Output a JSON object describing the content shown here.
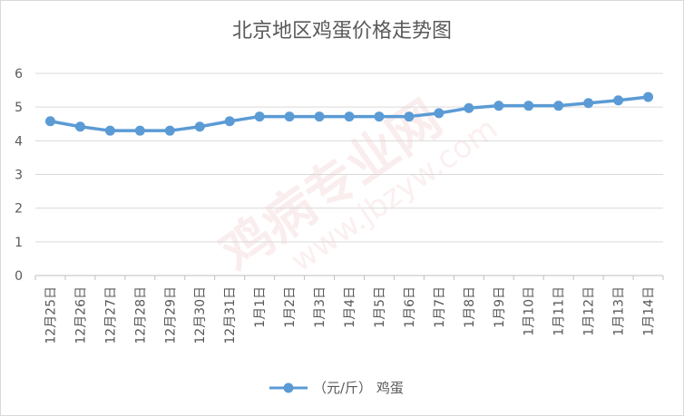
{
  "chart_data": {
    "type": "line",
    "title": "北京地区鸡蛋价格走势图",
    "categories": [
      "12月25日",
      "12月26日",
      "12月27日",
      "12月28日",
      "12月29日",
      "12月30日",
      "12月31日",
      "1月1日",
      "1月2日",
      "1月3日",
      "1月4日",
      "1月5日",
      "1月6日",
      "1月7日",
      "1月8日",
      "1月9日",
      "1月10日",
      "1月11日",
      "1月12日",
      "1月13日",
      "1月14日"
    ],
    "series": [
      {
        "name": "（元/斤） 鸡蛋",
        "values": [
          4.58,
          4.42,
          4.3,
          4.3,
          4.3,
          4.42,
          4.58,
          4.72,
          4.72,
          4.72,
          4.72,
          4.72,
          4.72,
          4.82,
          4.97,
          5.04,
          5.04,
          5.04,
          5.12,
          5.2,
          5.3
        ],
        "color": "#5b9bd5"
      }
    ],
    "ylim": [
      0,
      6
    ],
    "yticks": [
      0,
      1,
      2,
      3,
      4,
      5,
      6
    ],
    "grid": true,
    "legend": "bottom"
  },
  "watermark": {
    "text": "鸡病专业网",
    "url": "www.jbzyw.com"
  }
}
